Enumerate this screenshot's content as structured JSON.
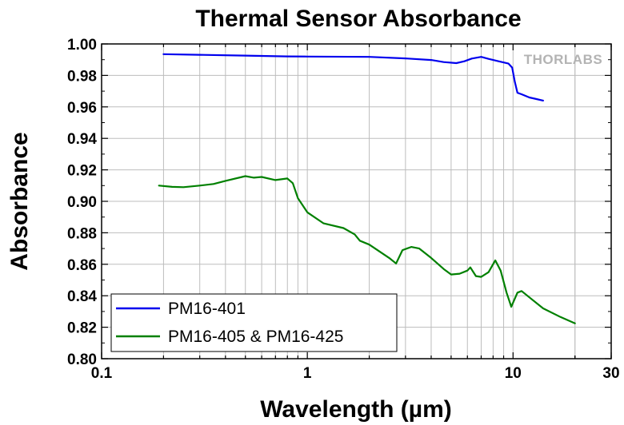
{
  "chart_data": {
    "type": "line",
    "title": "Thermal Sensor Absorbance",
    "xlabel": "Wavelength (µm)",
    "ylabel": "Absorbance",
    "x_scale": "log",
    "xlim": [
      0.1,
      30
    ],
    "ylim": [
      0.8,
      1.0
    ],
    "x_ticks": [
      0.1,
      1,
      10,
      30
    ],
    "x_tick_labels": [
      "0.1",
      "1",
      "10",
      "30"
    ],
    "y_ticks": [
      0.8,
      0.82,
      0.84,
      0.86,
      0.88,
      0.9,
      0.92,
      0.94,
      0.96,
      0.98,
      1.0
    ],
    "y_tick_labels": [
      "0.80",
      "0.82",
      "0.84",
      "0.86",
      "0.88",
      "0.90",
      "0.92",
      "0.94",
      "0.96",
      "0.98",
      "1.00"
    ],
    "grid": true,
    "legend_position": "bottom-left",
    "watermark": "THORLABS",
    "series": [
      {
        "name": "PM16-401",
        "color": "#0000ee",
        "points": [
          [
            0.2,
            0.9935
          ],
          [
            0.3,
            0.9931
          ],
          [
            0.5,
            0.9926
          ],
          [
            0.8,
            0.9921
          ],
          [
            1.0,
            0.992
          ],
          [
            2.0,
            0.9918
          ],
          [
            3.0,
            0.9908
          ],
          [
            4.0,
            0.9898
          ],
          [
            4.6,
            0.9885
          ],
          [
            5.3,
            0.9878
          ],
          [
            5.8,
            0.989
          ],
          [
            6.3,
            0.9907
          ],
          [
            7.0,
            0.9918
          ],
          [
            7.6,
            0.9905
          ],
          [
            8.5,
            0.989
          ],
          [
            9.5,
            0.9875
          ],
          [
            9.9,
            0.985
          ],
          [
            10.2,
            0.976
          ],
          [
            10.5,
            0.969
          ],
          [
            11.0,
            0.968
          ],
          [
            12.0,
            0.966
          ],
          [
            13.0,
            0.965
          ],
          [
            14.0,
            0.964
          ]
        ]
      },
      {
        "name": "PM16-405 & PM16-425",
        "color": "#008000",
        "points": [
          [
            0.19,
            0.91
          ],
          [
            0.22,
            0.9092
          ],
          [
            0.25,
            0.909
          ],
          [
            0.3,
            0.91
          ],
          [
            0.35,
            0.911
          ],
          [
            0.4,
            0.913
          ],
          [
            0.5,
            0.916
          ],
          [
            0.55,
            0.915
          ],
          [
            0.6,
            0.9155
          ],
          [
            0.7,
            0.9135
          ],
          [
            0.8,
            0.9145
          ],
          [
            0.85,
            0.9115
          ],
          [
            0.9,
            0.902
          ],
          [
            1.0,
            0.893
          ],
          [
            1.2,
            0.886
          ],
          [
            1.5,
            0.883
          ],
          [
            1.7,
            0.879
          ],
          [
            1.8,
            0.875
          ],
          [
            2.0,
            0.8725
          ],
          [
            2.5,
            0.864
          ],
          [
            2.7,
            0.8605
          ],
          [
            2.9,
            0.869
          ],
          [
            3.2,
            0.871
          ],
          [
            3.5,
            0.87
          ],
          [
            4.0,
            0.864
          ],
          [
            4.6,
            0.857
          ],
          [
            5.0,
            0.8535
          ],
          [
            5.5,
            0.854
          ],
          [
            6.0,
            0.856
          ],
          [
            6.2,
            0.858
          ],
          [
            6.6,
            0.8525
          ],
          [
            7.0,
            0.852
          ],
          [
            7.6,
            0.855
          ],
          [
            8.2,
            0.8625
          ],
          [
            8.7,
            0.856
          ],
          [
            9.3,
            0.842
          ],
          [
            9.8,
            0.833
          ],
          [
            10.5,
            0.842
          ],
          [
            11.0,
            0.843
          ],
          [
            12.0,
            0.839
          ],
          [
            14.0,
            0.832
          ],
          [
            17.0,
            0.8265
          ],
          [
            20.0,
            0.8225
          ]
        ]
      }
    ]
  }
}
